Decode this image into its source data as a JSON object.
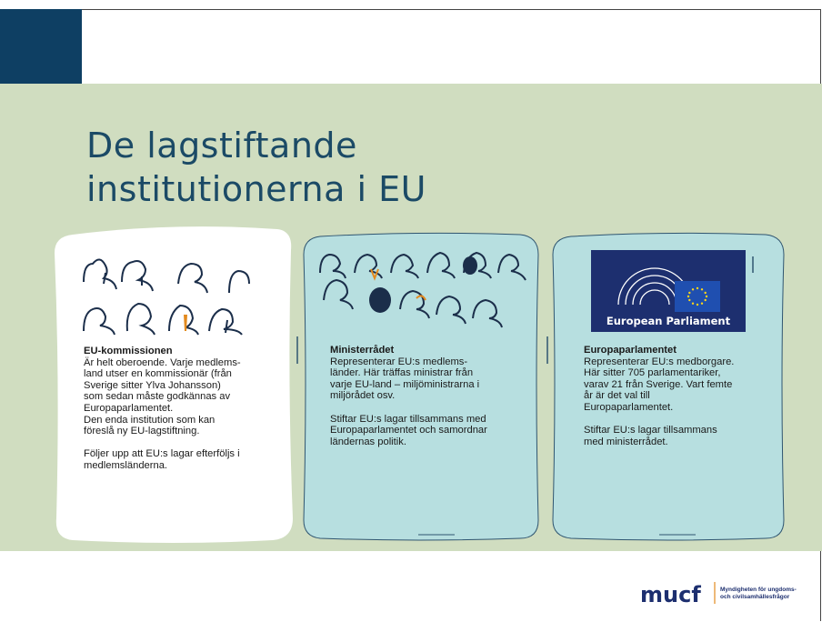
{
  "header": {
    "title": [
      "De lagstiftande",
      "institutionerna i EU"
    ]
  },
  "cards": [
    {
      "heading": "EU-kommissionen",
      "paragraphs": [
        [
          "Är helt oberoende. Varje medlems-",
          "land utser en kommissionär (från",
          "Sverige sitter Ylva Johansson)",
          "som sedan måste godkännas av",
          "Europaparlamentet.",
          "Den enda institution som kan",
          "föreslå ny EU-lagstiftning."
        ],
        [
          "Följer upp att EU:s lagar efterföljs i",
          "medlemsländerna."
        ]
      ]
    },
    {
      "heading": "Ministerrådet",
      "paragraphs": [
        [
          "Representerar EU:s medlems-",
          "länder. Här träffas ministrar från",
          "varje EU-land – miljöministrarna i",
          "miljörådet osv."
        ],
        [
          "Stiftar EU:s lagar tillsammans med",
          "Europaparlamentet och samordnar",
          "ländernas politik."
        ]
      ]
    },
    {
      "heading": "Europaparlamentet",
      "paragraphs": [
        [
          "Representerar EU:s medborgare.",
          "Här sitter 705 parlamentariker,",
          "varav 21 från Sverige. Vart femte",
          "år är det val till",
          "Europaparlamentet."
        ],
        [
          "Stiftar EU:s lagar tillsammans",
          "med ministerrådet."
        ]
      ]
    }
  ],
  "parliament_logo": "European Parliament",
  "footer": {
    "logo": "mucf",
    "agency": [
      "Myndigheten för ungdoms-",
      "och civilsamhällesfrågor"
    ]
  }
}
